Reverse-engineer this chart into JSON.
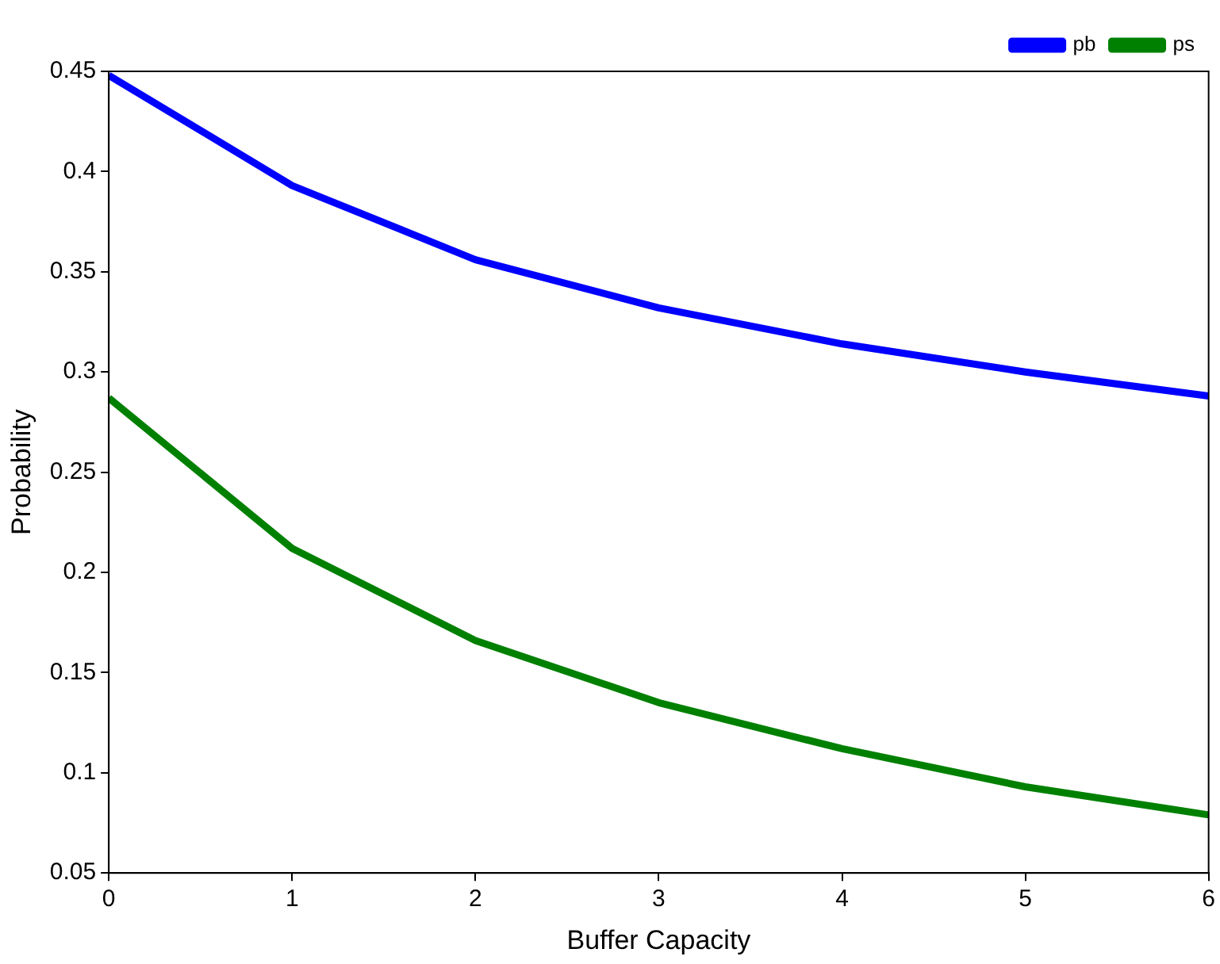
{
  "chart_data": {
    "type": "line",
    "xlabel": "Buffer Capacity",
    "ylabel": "Probability",
    "x": [
      0,
      1,
      2,
      3,
      4,
      5,
      6
    ],
    "series": [
      {
        "name": "pb",
        "color": "#0000ff",
        "values": [
          0.448,
          0.393,
          0.356,
          0.332,
          0.314,
          0.3,
          0.288
        ]
      },
      {
        "name": "ps",
        "color": "#008000",
        "values": [
          0.287,
          0.212,
          0.166,
          0.135,
          0.112,
          0.093,
          0.079
        ]
      }
    ],
    "xlim": [
      0,
      6
    ],
    "xticks": [
      0,
      1,
      2,
      3,
      4,
      5,
      6
    ],
    "ylim": [
      0.05,
      0.45
    ],
    "yticks": [
      0.05,
      0.1,
      0.15,
      0.2,
      0.25,
      0.3,
      0.35,
      0.4,
      0.45
    ],
    "grid": false,
    "legend": "top right",
    "marker": "none",
    "line_style": "solid"
  }
}
